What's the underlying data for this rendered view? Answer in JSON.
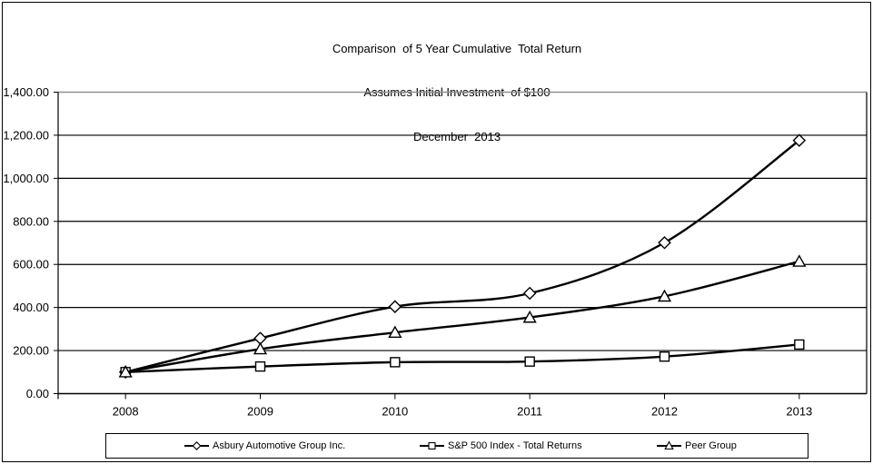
{
  "title": {
    "line1": "Comparison  of 5 Year Cumulative  Total Return",
    "line2": "Assumes Initial Investment  of $100",
    "line3": "December  2013"
  },
  "colors": {
    "background": "#ffffff",
    "series_line": "#000000",
    "gridline": "#000000",
    "top_gridline": "#909090",
    "marker_fill": "#ffffff",
    "text": "#000000"
  },
  "legend": {
    "items": [
      {
        "label": "Asbury Automotive Group Inc.",
        "marker": "diamond"
      },
      {
        "label": "S&P 500 Index - Total Returns",
        "marker": "square"
      },
      {
        "label": "Peer Group",
        "marker": "triangle"
      }
    ]
  },
  "chart_data": {
    "type": "line",
    "title": "Comparison of 5 Year Cumulative Total Return",
    "subtitle": "Assumes Initial Investment of $100",
    "date_label": "December 2013",
    "categories": [
      "2008",
      "2009",
      "2010",
      "2011",
      "2012",
      "2013"
    ],
    "series": [
      {
        "name": "Asbury Automotive Group Inc.",
        "marker": "diamond",
        "values": [
          100,
          257,
          404,
          466,
          701,
          1176
        ]
      },
      {
        "name": "S&P 500 Index - Total Returns",
        "marker": "square",
        "values": [
          100,
          126,
          146,
          149,
          172,
          228
        ]
      },
      {
        "name": "Peer Group",
        "marker": "triangle",
        "values": [
          100,
          207,
          284,
          354,
          452,
          614
        ]
      }
    ],
    "xlabel": "",
    "ylabel": "",
    "ylim": [
      0,
      1400
    ],
    "ytick_step": 200,
    "ytick_labels": [
      "0.00",
      "200.00",
      "400.00",
      "600.00",
      "800.00",
      "1,000.00",
      "1,200.00",
      "1,400.00"
    ],
    "grid": true,
    "line_smoothing": true,
    "legend_position": "bottom"
  }
}
